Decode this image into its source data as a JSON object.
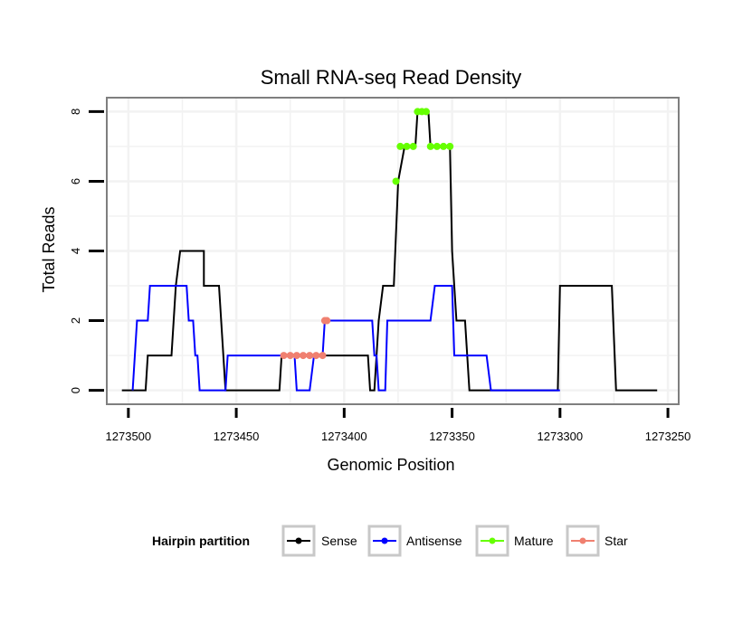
{
  "chart_data": {
    "type": "line",
    "title": "Small RNA-seq Read Density",
    "xlabel": "Genomic Position",
    "ylabel": "Total Reads",
    "xlim": [
      1273510,
      1273245
    ],
    "ylim": [
      -0.4,
      8.4
    ],
    "x_reversed": true,
    "x_ticks": [
      1273500,
      1273450,
      1273400,
      1273350,
      1273300,
      1273250
    ],
    "x_tick_labels": [
      "1273500",
      "1273450",
      "1273400",
      "1273350",
      "1273300",
      "1273250"
    ],
    "y_ticks": [
      0,
      2,
      4,
      6,
      8
    ],
    "y_tick_labels": [
      "0",
      "2",
      "4",
      "6",
      "8"
    ],
    "grid": true,
    "series": [
      {
        "name": "Sense",
        "color": "#000000",
        "points": [
          [
            1273503,
            0
          ],
          [
            1273492,
            0
          ],
          [
            1273491,
            1
          ],
          [
            1273480,
            1
          ],
          [
            1273478,
            3
          ],
          [
            1273476,
            4
          ],
          [
            1273465,
            4
          ],
          [
            1273465,
            3
          ],
          [
            1273458,
            3
          ],
          [
            1273457,
            2
          ],
          [
            1273455,
            0
          ],
          [
            1273430,
            0
          ],
          [
            1273429,
            1
          ],
          [
            1273389,
            1
          ],
          [
            1273388,
            0
          ],
          [
            1273386,
            0
          ],
          [
            1273384,
            2
          ],
          [
            1273382,
            3
          ],
          [
            1273377,
            3
          ],
          [
            1273375,
            6
          ],
          [
            1273372,
            7
          ],
          [
            1273367,
            7
          ],
          [
            1273366,
            8
          ],
          [
            1273361,
            8
          ],
          [
            1273360,
            7
          ],
          [
            1273351,
            7
          ],
          [
            1273350,
            4
          ],
          [
            1273348,
            2
          ],
          [
            1273344,
            2
          ],
          [
            1273342,
            0
          ],
          [
            1273301,
            0
          ],
          [
            1273300,
            3
          ],
          [
            1273276,
            3
          ],
          [
            1273274,
            0
          ],
          [
            1273255,
            0
          ]
        ]
      },
      {
        "name": "Antisense",
        "color": "#0000ff",
        "points": [
          [
            1273498,
            0
          ],
          [
            1273496,
            2
          ],
          [
            1273491,
            2
          ],
          [
            1273490,
            3
          ],
          [
            1273473,
            3
          ],
          [
            1273472,
            2
          ],
          [
            1273470,
            2
          ],
          [
            1273469,
            1
          ],
          [
            1273468,
            1
          ],
          [
            1273467,
            0
          ],
          [
            1273455,
            0
          ],
          [
            1273454,
            1
          ],
          [
            1273423,
            1
          ],
          [
            1273422,
            0
          ],
          [
            1273416,
            0
          ],
          [
            1273414,
            1
          ],
          [
            1273410,
            1
          ],
          [
            1273409,
            2
          ],
          [
            1273387,
            2
          ],
          [
            1273386,
            1
          ],
          [
            1273385,
            1
          ],
          [
            1273384,
            0
          ],
          [
            1273381,
            0
          ],
          [
            1273380,
            2
          ],
          [
            1273360,
            2
          ],
          [
            1273358,
            3
          ],
          [
            1273350,
            3
          ],
          [
            1273349,
            1
          ],
          [
            1273334,
            1
          ],
          [
            1273332,
            0
          ],
          [
            1273300,
            0
          ]
        ]
      },
      {
        "name": "Mature",
        "color": "#66ff00",
        "markers": [
          [
            1273376,
            6
          ],
          [
            1273374,
            7
          ],
          [
            1273371,
            7
          ],
          [
            1273368,
            7
          ],
          [
            1273366,
            8
          ],
          [
            1273364,
            8
          ],
          [
            1273362,
            8
          ],
          [
            1273360,
            7
          ],
          [
            1273357,
            7
          ],
          [
            1273354,
            7
          ],
          [
            1273351,
            7
          ]
        ]
      },
      {
        "name": "Star",
        "color": "#f08070",
        "markers": [
          [
            1273428,
            1
          ],
          [
            1273425,
            1
          ],
          [
            1273422,
            1
          ],
          [
            1273419,
            1
          ],
          [
            1273416,
            1
          ],
          [
            1273413,
            1
          ],
          [
            1273410,
            1
          ],
          [
            1273409,
            2
          ],
          [
            1273408,
            2
          ]
        ]
      }
    ],
    "legend": {
      "title": "Hairpin partition",
      "placement": "bottom",
      "entries": [
        {
          "label": "Sense",
          "color": "#000000"
        },
        {
          "label": "Antisense",
          "color": "#0000ff"
        },
        {
          "label": "Mature",
          "color": "#66ff00"
        },
        {
          "label": "Star",
          "color": "#f08070"
        }
      ]
    }
  }
}
